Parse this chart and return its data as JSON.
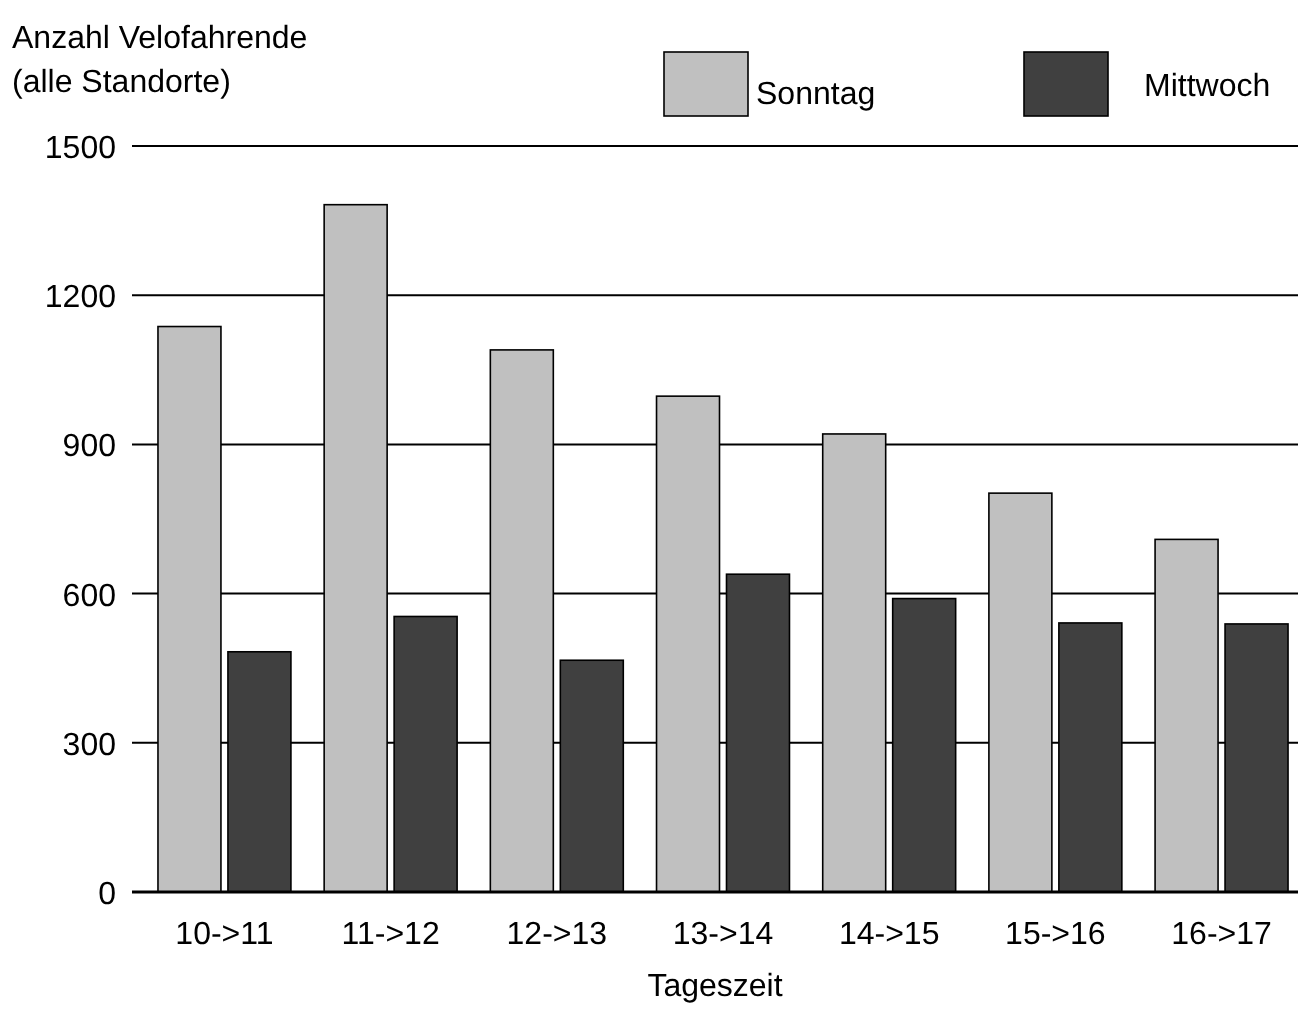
{
  "chart_data": {
    "type": "bar",
    "ylabel": "Anzahl Velofahrende\n(alle Standorte)",
    "xlabel": "Tageszeit",
    "categories": [
      "10->11",
      "11->12",
      "12->13",
      "13->14",
      "14->15",
      "15->16",
      "16->17"
    ],
    "series": [
      {
        "name": "Sonntag",
        "color": "#c0c0c0",
        "values": [
          1137,
          1382,
          1090,
          997,
          921,
          802,
          709
        ]
      },
      {
        "name": "Mittwoch",
        "color": "#404040",
        "values": [
          483,
          554,
          466,
          639,
          590,
          541,
          539
        ]
      }
    ],
    "ylim": [
      0,
      1500
    ],
    "yticks": [
      0,
      300,
      600,
      900,
      1200,
      1500
    ],
    "grid": "y",
    "legend": "top right"
  }
}
